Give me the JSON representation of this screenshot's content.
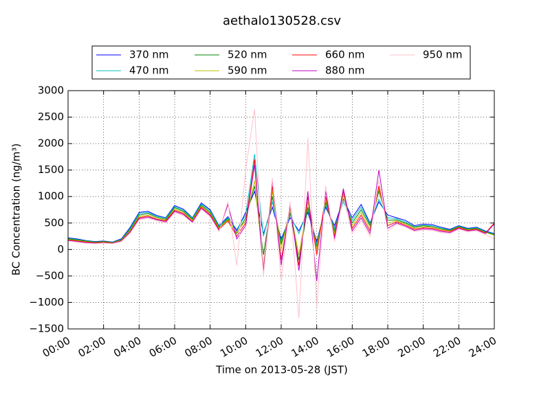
{
  "chart_data": {
    "type": "line",
    "title": "aethalo130528.csv",
    "xlabel": "Time on 2013-05-28 (JST)",
    "ylabel": "BC Concentration (ng/m³)",
    "x": [
      0,
      0.5,
      1,
      1.5,
      2,
      2.5,
      3,
      3.5,
      4,
      4.5,
      5,
      5.5,
      6,
      6.5,
      7,
      7.5,
      8,
      8.5,
      9,
      9.5,
      10,
      10.5,
      11,
      11.5,
      12,
      12.5,
      13,
      13.5,
      14,
      14.5,
      15,
      15.5,
      16,
      16.5,
      17,
      17.5,
      18,
      18.5,
      19,
      19.5,
      20,
      20.5,
      21,
      21.5,
      22,
      22.5,
      23,
      23.5,
      24
    ],
    "xlim": [
      0,
      24
    ],
    "xticks": [
      {
        "value": 0,
        "label": "00:00"
      },
      {
        "value": 2,
        "label": "02:00"
      },
      {
        "value": 4,
        "label": "04:00"
      },
      {
        "value": 6,
        "label": "06:00"
      },
      {
        "value": 8,
        "label": "08:00"
      },
      {
        "value": 10,
        "label": "10:00"
      },
      {
        "value": 12,
        "label": "12:00"
      },
      {
        "value": 14,
        "label": "14:00"
      },
      {
        "value": 16,
        "label": "16:00"
      },
      {
        "value": 18,
        "label": "18:00"
      },
      {
        "value": 20,
        "label": "20:00"
      },
      {
        "value": 22,
        "label": "22:00"
      },
      {
        "value": 24,
        "label": "24:00"
      }
    ],
    "ylim": [
      -1500,
      3000
    ],
    "yticks": [
      {
        "value": -1500,
        "label": "−1500"
      },
      {
        "value": -1000,
        "label": "−1000"
      },
      {
        "value": -500,
        "label": "−500"
      },
      0,
      500,
      1000,
      1500,
      2000,
      2500,
      3000
    ],
    "grid": true,
    "legend": "top",
    "series": [
      {
        "name": "370 nm",
        "color": "#0000ff",
        "values": [
          220,
          200,
          170,
          150,
          160,
          140,
          200,
          420,
          700,
          720,
          640,
          600,
          830,
          760,
          600,
          880,
          750,
          450,
          620,
          350,
          700,
          1100,
          300,
          800,
          200,
          600,
          350,
          700,
          150,
          800,
          450,
          950,
          600,
          850,
          500,
          900,
          650,
          600,
          550,
          450,
          480,
          470,
          420,
          380,
          450,
          400,
          420,
          350,
          300
        ]
      },
      {
        "name": "470 nm",
        "color": "#00bfbf",
        "values": [
          210,
          190,
          165,
          145,
          150,
          135,
          190,
          400,
          680,
          700,
          630,
          590,
          810,
          740,
          590,
          860,
          730,
          440,
          600,
          380,
          650,
          1800,
          250,
          900,
          150,
          650,
          300,
          750,
          100,
          850,
          400,
          900,
          550,
          800,
          480,
          950,
          600,
          580,
          520,
          430,
          460,
          450,
          400,
          370,
          440,
          390,
          410,
          340,
          290
        ]
      },
      {
        "name": "520 nm",
        "color": "#008000",
        "values": [
          200,
          180,
          160,
          140,
          150,
          130,
          185,
          380,
          650,
          680,
          610,
          570,
          790,
          720,
          570,
          840,
          700,
          420,
          580,
          300,
          600,
          1200,
          -100,
          1000,
          100,
          700,
          -200,
          800,
          50,
          900,
          350,
          1000,
          500,
          750,
          450,
          1100,
          550,
          560,
          500,
          420,
          450,
          430,
          390,
          360,
          430,
          380,
          400,
          330,
          280
        ]
      },
      {
        "name": "590 nm",
        "color": "#bfbf00",
        "values": [
          190,
          170,
          150,
          130,
          140,
          125,
          175,
          360,
          620,
          650,
          590,
          550,
          760,
          700,
          550,
          820,
          680,
          400,
          560,
          320,
          550,
          1300,
          -300,
          1100,
          0,
          750,
          -100,
          900,
          0,
          950,
          300,
          1050,
          450,
          700,
          400,
          1150,
          500,
          540,
          480,
          400,
          430,
          420,
          380,
          350,
          420,
          370,
          390,
          320,
          270
        ]
      },
      {
        "name": "660 nm",
        "color": "#ff0000",
        "values": [
          180,
          160,
          140,
          125,
          130,
          120,
          165,
          340,
          600,
          630,
          570,
          540,
          740,
          680,
          530,
          800,
          660,
          380,
          540,
          250,
          500,
          1700,
          -450,
          1200,
          -200,
          800,
          -300,
          1000,
          -100,
          1000,
          250,
          1100,
          400,
          650,
          350,
          1200,
          450,
          520,
          460,
          380,
          410,
          400,
          360,
          340,
          410,
          360,
          380,
          310,
          500
        ]
      },
      {
        "name": "880 nm",
        "color": "#bf00bf",
        "values": [
          170,
          150,
          130,
          120,
          125,
          115,
          160,
          330,
          580,
          610,
          560,
          520,
          720,
          660,
          520,
          780,
          640,
          360,
          850,
          200,
          450,
          1600,
          -400,
          1300,
          -300,
          850,
          -400,
          1100,
          -600,
          1100,
          200,
          1150,
          350,
          600,
          300,
          1500,
          400,
          500,
          440,
          360,
          390,
          380,
          340,
          320,
          400,
          350,
          370,
          300,
          480
        ]
      },
      {
        "name": "950 nm",
        "color": "#ffc0cb",
        "values": [
          160,
          140,
          120,
          110,
          120,
          110,
          150,
          310,
          560,
          590,
          540,
          500,
          700,
          640,
          500,
          760,
          620,
          340,
          900,
          -300,
          1500,
          2650,
          -500,
          1350,
          -600,
          900,
          -1300,
          2100,
          -1100,
          1200,
          150,
          1000,
          300,
          550,
          250,
          1300,
          350,
          480,
          420,
          340,
          370,
          360,
          320,
          300,
          380,
          330,
          350,
          280,
          200
        ]
      }
    ]
  }
}
